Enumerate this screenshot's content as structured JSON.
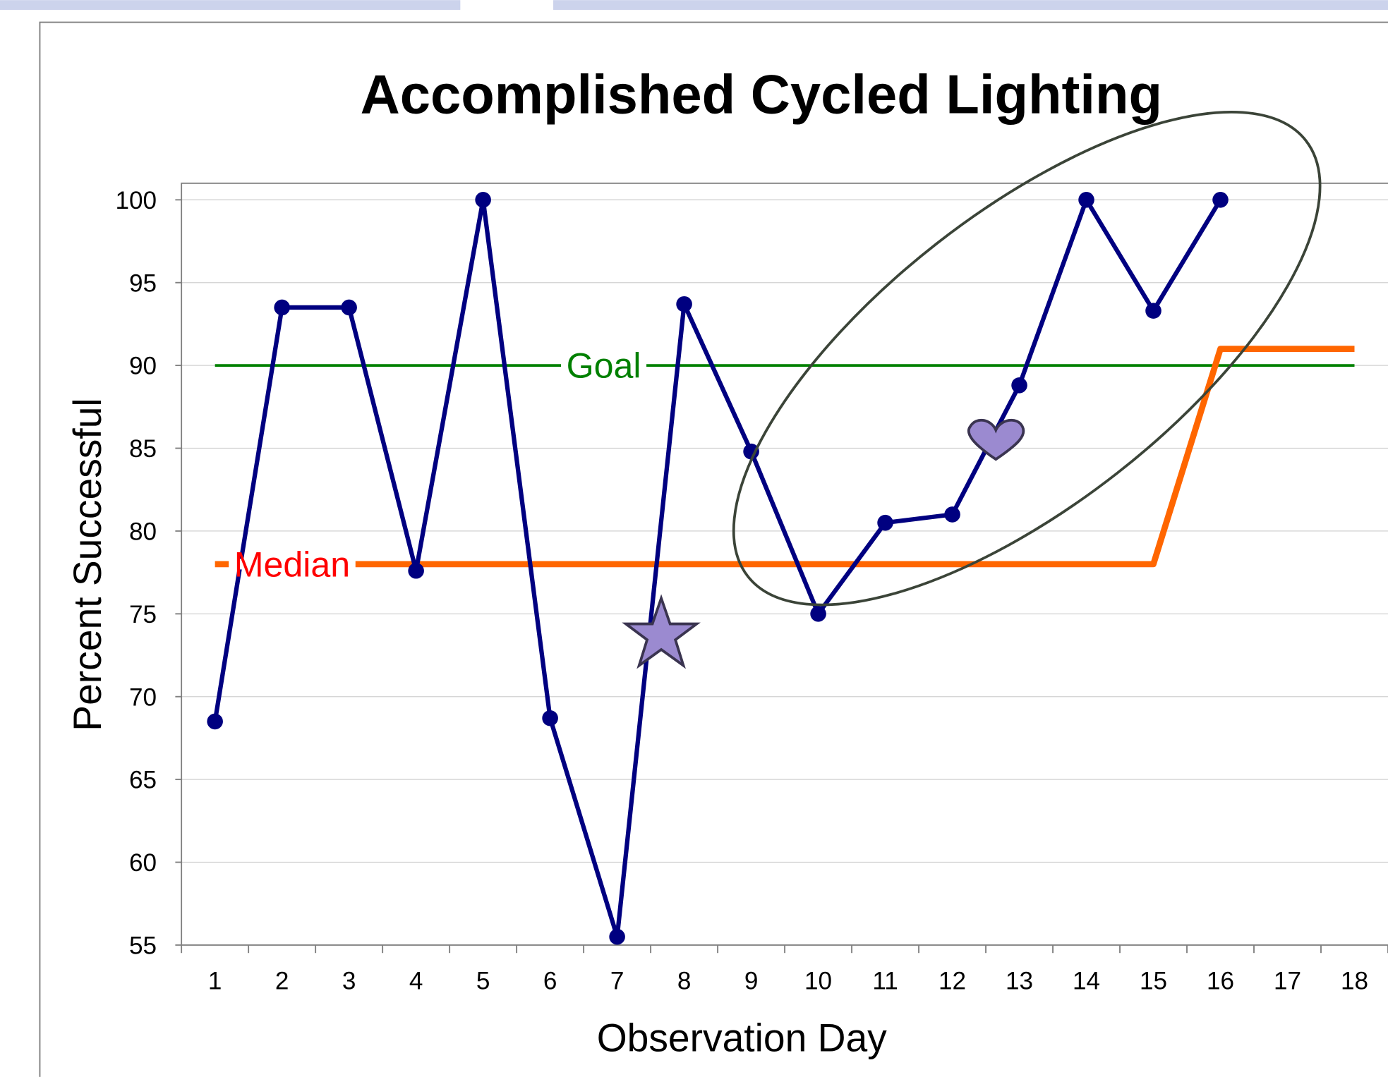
{
  "chart_data": {
    "type": "line",
    "title": "Accomplished Cycled Lighting",
    "x_label": "Observation Day",
    "y_label": "Percent Successful",
    "categories": [
      "1",
      "2",
      "3",
      "4",
      "5",
      "6",
      "7",
      "8",
      "9",
      "10",
      "11",
      "12",
      "13",
      "14",
      "15",
      "16",
      "17",
      "18"
    ],
    "series": [
      {
        "color": "#000080",
        "markers": true,
        "values": [
          68.5,
          93.5,
          93.5,
          77.6,
          100,
          68.7,
          55.5,
          93.7,
          84.8,
          75,
          80.5,
          81,
          88.8,
          100,
          93.3,
          100,
          null,
          null
        ]
      },
      {
        "name": "Goal",
        "color": "#008000",
        "label_color": "#008000",
        "markers": false,
        "values": [
          90,
          90,
          90,
          90,
          90,
          90,
          90,
          90,
          90,
          90,
          90,
          90,
          90,
          90,
          90,
          90,
          90,
          90
        ]
      },
      {
        "name": "Median",
        "color": "#ff6600",
        "label_color": "#ff0000",
        "markers": false,
        "values": [
          78,
          78,
          78,
          78,
          78,
          78,
          78,
          78,
          78,
          78,
          78,
          78,
          78,
          78,
          78,
          91,
          91,
          91
        ]
      }
    ],
    "ylim": [
      55,
      101
    ],
    "yticks": [
      55,
      60,
      65,
      70,
      75,
      80,
      85,
      90,
      95,
      100
    ],
    "grid": true
  }
}
